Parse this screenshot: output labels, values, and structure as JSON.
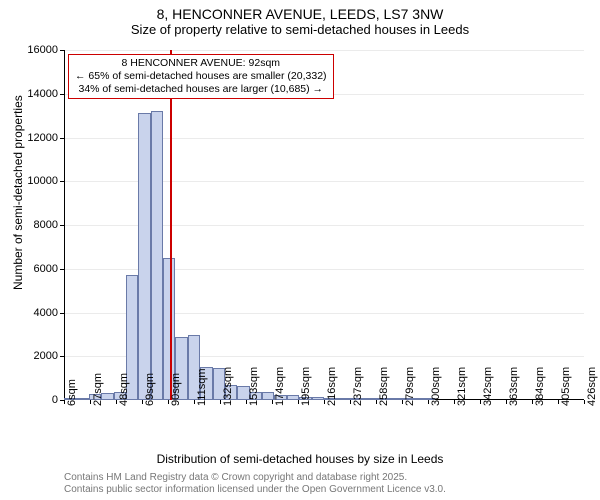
{
  "title": {
    "line1": "8, HENCONNER AVENUE, LEEDS, LS7 3NW",
    "line2": "Size of property relative to semi-detached houses in Leeds",
    "fontsize_main": 14,
    "fontsize_sub": 13
  },
  "chart": {
    "type": "histogram",
    "background_color": "#ffffff",
    "bar_fill": "#c9d3ec",
    "bar_border": "#6a7aa8",
    "grid_color": "#e8e8e8",
    "axis_color": "#000000",
    "marker_line_color": "#cc0000",
    "x_min": 6,
    "x_max": 426,
    "y_min": 0,
    "y_max": 16000,
    "y_ticks": [
      0,
      2000,
      4000,
      6000,
      8000,
      10000,
      12000,
      14000,
      16000
    ],
    "x_tick_start": 6,
    "x_tick_step": 21,
    "x_tick_step_label": 21,
    "x_tick_suffix": "sqm",
    "bin_width": 10,
    "bins": [
      {
        "x": 6,
        "count": 50
      },
      {
        "x": 16,
        "count": 80
      },
      {
        "x": 26,
        "count": 280
      },
      {
        "x": 36,
        "count": 320
      },
      {
        "x": 46,
        "count": 350
      },
      {
        "x": 56,
        "count": 5700
      },
      {
        "x": 66,
        "count": 13100
      },
      {
        "x": 76,
        "count": 13200
      },
      {
        "x": 86,
        "count": 6500
      },
      {
        "x": 96,
        "count": 2900
      },
      {
        "x": 106,
        "count": 2950
      },
      {
        "x": 116,
        "count": 1500
      },
      {
        "x": 126,
        "count": 1450
      },
      {
        "x": 136,
        "count": 700
      },
      {
        "x": 146,
        "count": 650
      },
      {
        "x": 156,
        "count": 350
      },
      {
        "x": 166,
        "count": 350
      },
      {
        "x": 176,
        "count": 250
      },
      {
        "x": 186,
        "count": 250
      },
      {
        "x": 196,
        "count": 120
      },
      {
        "x": 206,
        "count": 120
      },
      {
        "x": 216,
        "count": 90
      },
      {
        "x": 226,
        "count": 90
      },
      {
        "x": 236,
        "count": 80
      },
      {
        "x": 246,
        "count": 70
      },
      {
        "x": 256,
        "count": 40
      },
      {
        "x": 266,
        "count": 30
      },
      {
        "x": 276,
        "count": 30
      },
      {
        "x": 286,
        "count": 10
      },
      {
        "x": 296,
        "count": 10
      }
    ],
    "marker_value": 92,
    "ylabel": "Number of semi-detached properties",
    "xlabel": "Distribution of semi-detached houses by size in Leeds",
    "label_fontsize": 12
  },
  "annotation": {
    "line1": "8 HENCONNER AVENUE: 92sqm",
    "line2": "← 65% of semi-detached houses are smaller (20,332)",
    "line3": "34% of semi-detached houses are larger (10,685) →",
    "border_color": "#cc0000",
    "background": "#ffffff",
    "fontsize": 10.5
  },
  "footer": {
    "line1": "Contains HM Land Registry data © Crown copyright and database right 2025.",
    "line2": "Contains public sector information licensed under the Open Government Licence v3.0.",
    "color": "#777777",
    "fontsize": 10
  }
}
